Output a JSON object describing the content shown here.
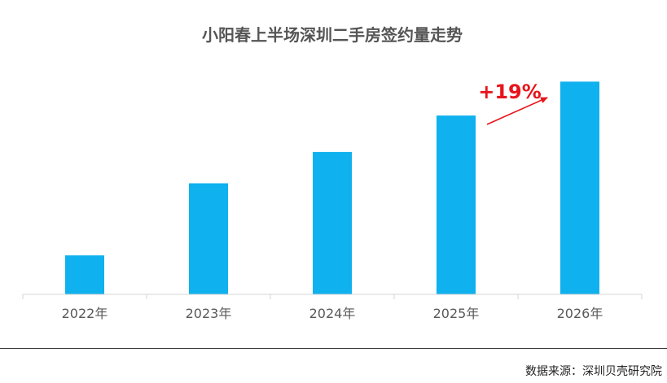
{
  "chart_data": {
    "type": "bar",
    "title": "小阳春上半场深圳二手房签约量走势",
    "categories": [
      "2022年",
      "2023年",
      "2024年",
      "2025年",
      "2026年"
    ],
    "series": [
      {
        "values": [
          46,
          131,
          168,
          211,
          251
        ]
      }
    ],
    "ylim": [
      0,
      260
    ],
    "grid": false,
    "legend": "none",
    "annotation": {
      "text": "+19%",
      "from": "2025年",
      "to": "2026年"
    },
    "colors": {
      "bar": "#0fb1ee",
      "annotation": "#e8141b",
      "axis": "#d4d4d4",
      "title": "#555555",
      "tick": "#595959"
    }
  },
  "source": "数据来源：深圳贝壳研究院"
}
